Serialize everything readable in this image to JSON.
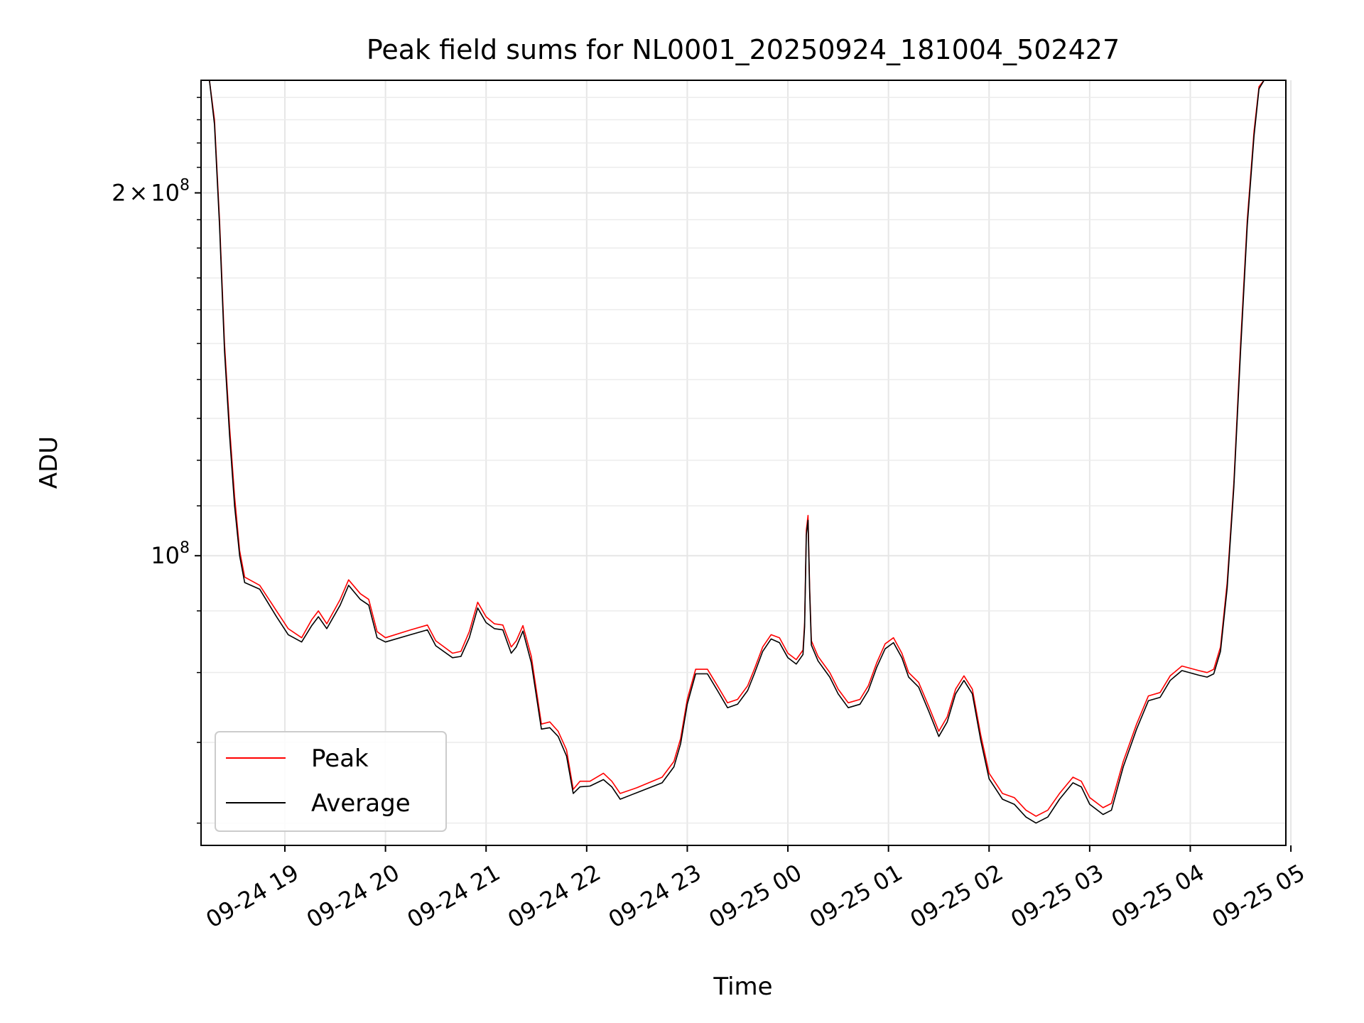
{
  "chart_data": {
    "type": "line",
    "title": "Peak field sums for NL0001_20250924_181004_502427",
    "xlabel": "Time",
    "ylabel": "ADU",
    "y_scale": "log",
    "grid": true,
    "legend_position": "lower-left",
    "xlim": [
      "2025-09-24 18:10",
      "2025-09-25 04:57"
    ],
    "ylim": [
      57500000,
      248000000
    ],
    "x_ticks": [
      "09-24 19",
      "09-24 20",
      "09-24 21",
      "09-24 22",
      "09-24 23",
      "09-25 00",
      "09-25 01",
      "09-25 02",
      "09-25 03",
      "09-25 04",
      "09-25 05"
    ],
    "y_ticks": [
      {
        "value": 100000000,
        "mantissa": "",
        "base": "10",
        "exp": "8"
      },
      {
        "value": 200000000,
        "mantissa": "2",
        "base": "10",
        "exp": "8"
      }
    ],
    "series": [
      {
        "name": "Peak",
        "color": "#ff0000",
        "points": [
          [
            "2025-09-24 18:10",
            248000000
          ],
          [
            "2025-09-24 18:15",
            248000000
          ],
          [
            "2025-09-24 18:18",
            230000000
          ],
          [
            "2025-09-24 18:21",
            190000000
          ],
          [
            "2025-09-24 18:24",
            150000000
          ],
          [
            "2025-09-24 18:27",
            128000000
          ],
          [
            "2025-09-24 18:30",
            112000000
          ],
          [
            "2025-09-24 18:33",
            101000000
          ],
          [
            "2025-09-24 18:36",
            96000000
          ],
          [
            "2025-09-24 18:45",
            94500000
          ],
          [
            "2025-09-24 18:55",
            90000000
          ],
          [
            "2025-09-24 19:02",
            87000000
          ],
          [
            "2025-09-24 19:10",
            85500000
          ],
          [
            "2025-09-24 19:16",
            88500000
          ],
          [
            "2025-09-24 19:20",
            90000000
          ],
          [
            "2025-09-24 19:25",
            87800000
          ],
          [
            "2025-09-24 19:33",
            92000000
          ],
          [
            "2025-09-24 19:38",
            95500000
          ],
          [
            "2025-09-24 19:45",
            93000000
          ],
          [
            "2025-09-24 19:50",
            92000000
          ],
          [
            "2025-09-24 19:55",
            86500000
          ],
          [
            "2025-09-24 20:00",
            85500000
          ],
          [
            "2025-09-24 20:15",
            86800000
          ],
          [
            "2025-09-24 20:25",
            87600000
          ],
          [
            "2025-09-24 20:30",
            85000000
          ],
          [
            "2025-09-24 20:40",
            83000000
          ],
          [
            "2025-09-24 20:45",
            83300000
          ],
          [
            "2025-09-24 20:50",
            86500000
          ],
          [
            "2025-09-24 20:55",
            91500000
          ],
          [
            "2025-09-24 21:00",
            89000000
          ],
          [
            "2025-09-24 21:05",
            87800000
          ],
          [
            "2025-09-24 21:10",
            87600000
          ],
          [
            "2025-09-24 21:15",
            84000000
          ],
          [
            "2025-09-24 21:18",
            85000000
          ],
          [
            "2025-09-24 21:22",
            87500000
          ],
          [
            "2025-09-24 21:27",
            82500000
          ],
          [
            "2025-09-24 21:33",
            72500000
          ],
          [
            "2025-09-24 21:38",
            72800000
          ],
          [
            "2025-09-24 21:43",
            71500000
          ],
          [
            "2025-09-24 21:48",
            69000000
          ],
          [
            "2025-09-24 21:52",
            64000000
          ],
          [
            "2025-09-24 21:56",
            65000000
          ],
          [
            "2025-09-24 22:02",
            65000000
          ],
          [
            "2025-09-24 22:10",
            66000000
          ],
          [
            "2025-09-24 22:15",
            65000000
          ],
          [
            "2025-09-24 22:20",
            63500000
          ],
          [
            "2025-09-24 22:30",
            64200000
          ],
          [
            "2025-09-24 22:45",
            65500000
          ],
          [
            "2025-09-24 22:52",
            67500000
          ],
          [
            "2025-09-24 22:56",
            70500000
          ],
          [
            "2025-09-24 23:00",
            76000000
          ],
          [
            "2025-09-24 23:05",
            80500000
          ],
          [
            "2025-09-24 23:12",
            80500000
          ],
          [
            "2025-09-24 23:18",
            78000000
          ],
          [
            "2025-09-24 23:24",
            75500000
          ],
          [
            "2025-09-24 23:30",
            76000000
          ],
          [
            "2025-09-24 23:36",
            78000000
          ],
          [
            "2025-09-24 23:40",
            80500000
          ],
          [
            "2025-09-24 23:45",
            84000000
          ],
          [
            "2025-09-24 23:50",
            86000000
          ],
          [
            "2025-09-24 23:55",
            85500000
          ],
          [
            "2025-09-25 00:00",
            83000000
          ],
          [
            "2025-09-25 00:05",
            82000000
          ],
          [
            "2025-09-25 00:09",
            83500000
          ],
          [
            "2025-09-25 00:10",
            88000000
          ],
          [
            "2025-09-25 00:11",
            105000000
          ],
          [
            "2025-09-25 00:12",
            108000000
          ],
          [
            "2025-09-25 00:13",
            94000000
          ],
          [
            "2025-09-25 00:14",
            85000000
          ],
          [
            "2025-09-25 00:18",
            82500000
          ],
          [
            "2025-09-25 00:25",
            80000000
          ],
          [
            "2025-09-25 00:30",
            77500000
          ],
          [
            "2025-09-25 00:36",
            75500000
          ],
          [
            "2025-09-25 00:43",
            76000000
          ],
          [
            "2025-09-25 00:48",
            78000000
          ],
          [
            "2025-09-25 00:53",
            81500000
          ],
          [
            "2025-09-25 00:58",
            84500000
          ],
          [
            "2025-09-25 01:03",
            85500000
          ],
          [
            "2025-09-25 01:08",
            83000000
          ],
          [
            "2025-09-25 01:12",
            80000000
          ],
          [
            "2025-09-25 01:18",
            78500000
          ],
          [
            "2025-09-25 01:24",
            75000000
          ],
          [
            "2025-09-25 01:30",
            71500000
          ],
          [
            "2025-09-25 01:35",
            73500000
          ],
          [
            "2025-09-25 01:40",
            77500000
          ],
          [
            "2025-09-25 01:45",
            79500000
          ],
          [
            "2025-09-25 01:50",
            77500000
          ],
          [
            "2025-09-25 01:55",
            71000000
          ],
          [
            "2025-09-25 02:00",
            66000000
          ],
          [
            "2025-09-25 02:08",
            63500000
          ],
          [
            "2025-09-25 02:15",
            63000000
          ],
          [
            "2025-09-25 02:22",
            61500000
          ],
          [
            "2025-09-25 02:28",
            60800000
          ],
          [
            "2025-09-25 02:35",
            61500000
          ],
          [
            "2025-09-25 02:42",
            63500000
          ],
          [
            "2025-09-25 02:50",
            65500000
          ],
          [
            "2025-09-25 02:55",
            65000000
          ],
          [
            "2025-09-25 03:00",
            63000000
          ],
          [
            "2025-09-25 03:08",
            61800000
          ],
          [
            "2025-09-25 03:13",
            62300000
          ],
          [
            "2025-09-25 03:20",
            67500000
          ],
          [
            "2025-09-25 03:28",
            72500000
          ],
          [
            "2025-09-25 03:35",
            76500000
          ],
          [
            "2025-09-25 03:42",
            77000000
          ],
          [
            "2025-09-25 03:48",
            79500000
          ],
          [
            "2025-09-25 03:55",
            81000000
          ],
          [
            "2025-09-25 04:05",
            80300000
          ],
          [
            "2025-09-25 04:10",
            80000000
          ],
          [
            "2025-09-25 04:14",
            80500000
          ],
          [
            "2025-09-25 04:18",
            84000000
          ],
          [
            "2025-09-25 04:22",
            95000000
          ],
          [
            "2025-09-25 04:26",
            115000000
          ],
          [
            "2025-09-25 04:30",
            150000000
          ],
          [
            "2025-09-25 04:34",
            190000000
          ],
          [
            "2025-09-25 04:38",
            225000000
          ],
          [
            "2025-09-25 04:41",
            245000000
          ],
          [
            "2025-09-25 04:44",
            248000000
          ],
          [
            "2025-09-25 04:57",
            248000000
          ]
        ]
      },
      {
        "name": "Average",
        "color": "#000000",
        "points": [
          [
            "2025-09-24 18:10",
            248000000
          ],
          [
            "2025-09-24 18:15",
            248000000
          ],
          [
            "2025-09-24 18:18",
            228000000
          ],
          [
            "2025-09-24 18:21",
            188000000
          ],
          [
            "2025-09-24 18:24",
            148000000
          ],
          [
            "2025-09-24 18:27",
            126000000
          ],
          [
            "2025-09-24 18:30",
            110000000
          ],
          [
            "2025-09-24 18:33",
            100000000
          ],
          [
            "2025-09-24 18:36",
            95000000
          ],
          [
            "2025-09-24 18:45",
            93800000
          ],
          [
            "2025-09-24 18:55",
            89000000
          ],
          [
            "2025-09-24 19:02",
            86000000
          ],
          [
            "2025-09-24 19:10",
            84800000
          ],
          [
            "2025-09-24 19:16",
            87500000
          ],
          [
            "2025-09-24 19:20",
            89000000
          ],
          [
            "2025-09-24 19:25",
            87000000
          ],
          [
            "2025-09-24 19:33",
            91000000
          ],
          [
            "2025-09-24 19:38",
            94500000
          ],
          [
            "2025-09-24 19:45",
            92000000
          ],
          [
            "2025-09-24 19:50",
            91000000
          ],
          [
            "2025-09-24 19:55",
            85500000
          ],
          [
            "2025-09-24 20:00",
            84800000
          ],
          [
            "2025-09-24 20:15",
            86000000
          ],
          [
            "2025-09-24 20:25",
            86800000
          ],
          [
            "2025-09-24 20:30",
            84200000
          ],
          [
            "2025-09-24 20:40",
            82300000
          ],
          [
            "2025-09-24 20:45",
            82500000
          ],
          [
            "2025-09-24 20:50",
            85500000
          ],
          [
            "2025-09-24 20:55",
            90500000
          ],
          [
            "2025-09-24 21:00",
            88000000
          ],
          [
            "2025-09-24 21:05",
            87000000
          ],
          [
            "2025-09-24 21:10",
            86800000
          ],
          [
            "2025-09-24 21:15",
            83000000
          ],
          [
            "2025-09-24 21:18",
            84000000
          ],
          [
            "2025-09-24 21:22",
            86600000
          ],
          [
            "2025-09-24 21:27",
            81500000
          ],
          [
            "2025-09-24 21:33",
            71800000
          ],
          [
            "2025-09-24 21:38",
            72000000
          ],
          [
            "2025-09-24 21:43",
            70800000
          ],
          [
            "2025-09-24 21:48",
            68200000
          ],
          [
            "2025-09-24 21:52",
            63500000
          ],
          [
            "2025-09-24 21:56",
            64300000
          ],
          [
            "2025-09-24 22:02",
            64400000
          ],
          [
            "2025-09-24 22:10",
            65200000
          ],
          [
            "2025-09-24 22:15",
            64300000
          ],
          [
            "2025-09-24 22:20",
            62800000
          ],
          [
            "2025-09-24 22:30",
            63600000
          ],
          [
            "2025-09-24 22:45",
            64800000
          ],
          [
            "2025-09-24 22:52",
            66800000
          ],
          [
            "2025-09-24 22:56",
            69800000
          ],
          [
            "2025-09-24 23:00",
            75300000
          ],
          [
            "2025-09-24 23:05",
            79800000
          ],
          [
            "2025-09-24 23:12",
            79800000
          ],
          [
            "2025-09-24 23:18",
            77300000
          ],
          [
            "2025-09-24 23:24",
            74800000
          ],
          [
            "2025-09-24 23:30",
            75300000
          ],
          [
            "2025-09-24 23:36",
            77300000
          ],
          [
            "2025-09-24 23:40",
            79800000
          ],
          [
            "2025-09-24 23:45",
            83300000
          ],
          [
            "2025-09-24 23:50",
            85300000
          ],
          [
            "2025-09-24 23:55",
            84700000
          ],
          [
            "2025-09-25 00:00",
            82300000
          ],
          [
            "2025-09-25 00:05",
            81300000
          ],
          [
            "2025-09-25 00:09",
            82800000
          ],
          [
            "2025-09-25 00:10",
            87300000
          ],
          [
            "2025-09-25 00:11",
            104000000
          ],
          [
            "2025-09-25 00:12",
            107000000
          ],
          [
            "2025-09-25 00:13",
            93300000
          ],
          [
            "2025-09-25 00:14",
            84300000
          ],
          [
            "2025-09-25 00:18",
            81800000
          ],
          [
            "2025-09-25 00:25",
            79300000
          ],
          [
            "2025-09-25 00:30",
            76800000
          ],
          [
            "2025-09-25 00:36",
            74800000
          ],
          [
            "2025-09-25 00:43",
            75300000
          ],
          [
            "2025-09-25 00:48",
            77300000
          ],
          [
            "2025-09-25 00:53",
            80800000
          ],
          [
            "2025-09-25 00:58",
            83700000
          ],
          [
            "2025-09-25 01:03",
            84700000
          ],
          [
            "2025-09-25 01:08",
            82300000
          ],
          [
            "2025-09-25 01:12",
            79300000
          ],
          [
            "2025-09-25 01:18",
            77800000
          ],
          [
            "2025-09-25 01:24",
            74300000
          ],
          [
            "2025-09-25 01:30",
            70800000
          ],
          [
            "2025-09-25 01:35",
            72800000
          ],
          [
            "2025-09-25 01:40",
            76800000
          ],
          [
            "2025-09-25 01:45",
            78800000
          ],
          [
            "2025-09-25 01:50",
            76800000
          ],
          [
            "2025-09-25 01:55",
            70300000
          ],
          [
            "2025-09-25 02:00",
            65300000
          ],
          [
            "2025-09-25 02:08",
            62800000
          ],
          [
            "2025-09-25 02:15",
            62200000
          ],
          [
            "2025-09-25 02:22",
            60700000
          ],
          [
            "2025-09-25 02:28",
            60000000
          ],
          [
            "2025-09-25 02:35",
            60700000
          ],
          [
            "2025-09-25 02:42",
            62800000
          ],
          [
            "2025-09-25 02:50",
            64800000
          ],
          [
            "2025-09-25 02:55",
            64300000
          ],
          [
            "2025-09-25 03:00",
            62200000
          ],
          [
            "2025-09-25 03:08",
            61000000
          ],
          [
            "2025-09-25 03:13",
            61500000
          ],
          [
            "2025-09-25 03:20",
            66800000
          ],
          [
            "2025-09-25 03:28",
            71800000
          ],
          [
            "2025-09-25 03:35",
            75800000
          ],
          [
            "2025-09-25 03:42",
            76300000
          ],
          [
            "2025-09-25 03:48",
            78800000
          ],
          [
            "2025-09-25 03:55",
            80300000
          ],
          [
            "2025-09-25 04:05",
            79600000
          ],
          [
            "2025-09-25 04:10",
            79300000
          ],
          [
            "2025-09-25 04:14",
            79800000
          ],
          [
            "2025-09-25 04:18",
            83300000
          ],
          [
            "2025-09-25 04:22",
            94000000
          ],
          [
            "2025-09-25 04:26",
            114000000
          ],
          [
            "2025-09-25 04:30",
            148000000
          ],
          [
            "2025-09-25 04:34",
            188000000
          ],
          [
            "2025-09-25 04:38",
            223000000
          ],
          [
            "2025-09-25 04:41",
            244000000
          ],
          [
            "2025-09-25 04:44",
            248000000
          ],
          [
            "2025-09-25 04:57",
            248000000
          ]
        ]
      }
    ]
  }
}
